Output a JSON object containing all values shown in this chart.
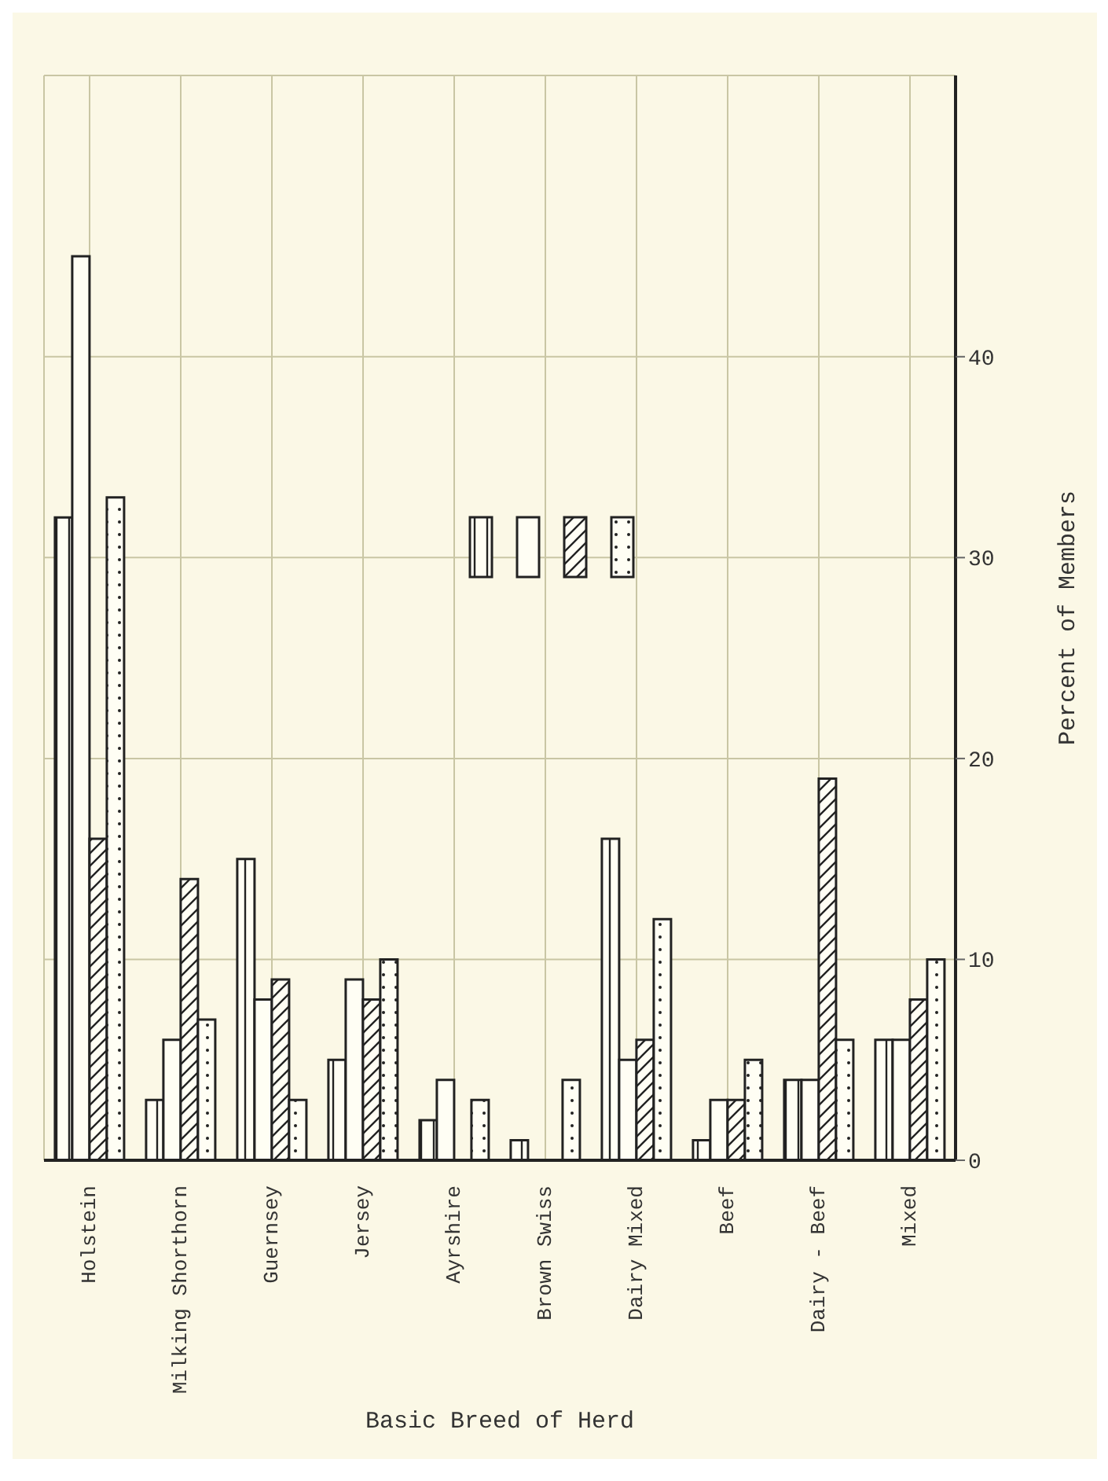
{
  "chart_data": {
    "type": "bar",
    "xlabel": "Basic Breed of Herd",
    "ylabel": "Percent of Members",
    "categories": [
      "Holstein",
      "Milking Shorthorn",
      "Guernsey",
      "Jersey",
      "Ayrshire",
      "Brown Swiss",
      "Dairy Mixed",
      "Beef",
      "Dairy - Beef",
      "Mixed"
    ],
    "series": [
      {
        "color": "#222222",
        "values": [
          32,
          3,
          15,
          5,
          2,
          1,
          16,
          1,
          4,
          6
        ]
      },
      {
        "color": "#222222",
        "values": [
          45,
          6,
          8,
          9,
          4,
          0,
          5,
          3,
          4,
          6
        ]
      },
      {
        "color": "#222222",
        "values": [
          16,
          14,
          9,
          8,
          0,
          0,
          6,
          3,
          19,
          8
        ]
      },
      {
        "color": "#222222",
        "values": [
          33,
          7,
          3,
          10,
          3,
          4,
          12,
          5,
          6,
          10
        ]
      }
    ],
    "ylim": [
      0,
      54
    ],
    "yticks": [
      0,
      10,
      20,
      30,
      40
    ],
    "grid": true
  }
}
